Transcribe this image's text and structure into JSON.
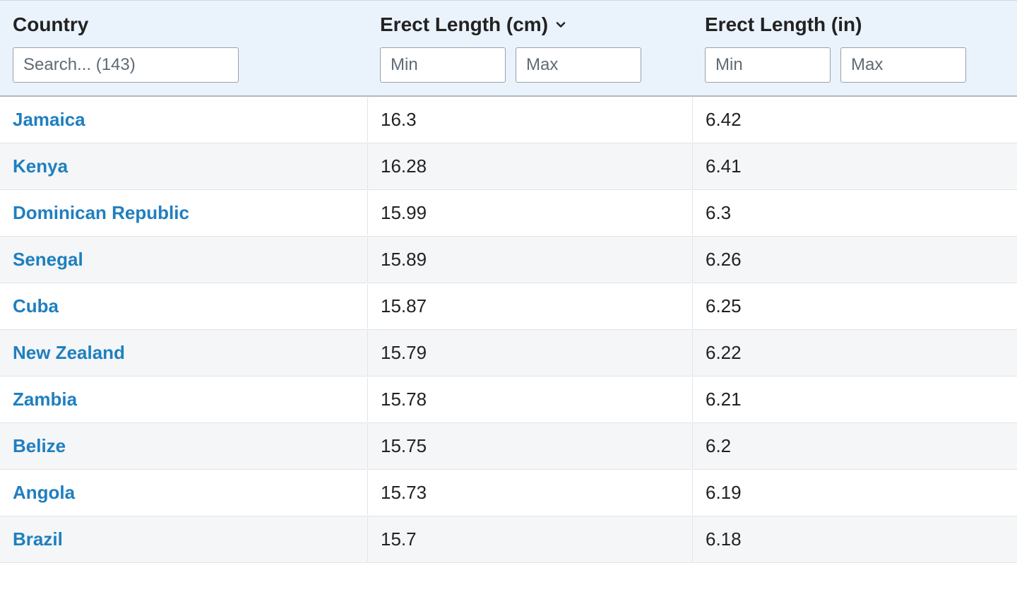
{
  "table": {
    "header_bg": "#eaf3fb",
    "row_alt_bg": "#f4f6f8",
    "border_color": "#e1e4e8",
    "link_color": "#1f7fbf",
    "text_color": "#222222",
    "placeholder_color": "#5f6b76",
    "columns": {
      "country": {
        "label": "Country",
        "search_placeholder": "Search... (143)"
      },
      "cm": {
        "label": "Erect Length (cm)",
        "sorted": "desc",
        "min_placeholder": "Min",
        "max_placeholder": "Max"
      },
      "in": {
        "label": "Erect Length (in)",
        "min_placeholder": "Min",
        "max_placeholder": "Max"
      }
    },
    "rows": [
      {
        "country": "Jamaica",
        "cm": "16.3",
        "in": "6.42"
      },
      {
        "country": "Kenya",
        "cm": "16.28",
        "in": "6.41"
      },
      {
        "country": "Dominican Republic",
        "cm": "15.99",
        "in": "6.3"
      },
      {
        "country": "Senegal",
        "cm": "15.89",
        "in": "6.26"
      },
      {
        "country": "Cuba",
        "cm": "15.87",
        "in": "6.25"
      },
      {
        "country": "New Zealand",
        "cm": "15.79",
        "in": "6.22"
      },
      {
        "country": "Zambia",
        "cm": "15.78",
        "in": "6.21"
      },
      {
        "country": "Belize",
        "cm": "15.75",
        "in": "6.2"
      },
      {
        "country": "Angola",
        "cm": "15.73",
        "in": "6.19"
      },
      {
        "country": "Brazil",
        "cm": "15.7",
        "in": "6.18"
      }
    ]
  }
}
